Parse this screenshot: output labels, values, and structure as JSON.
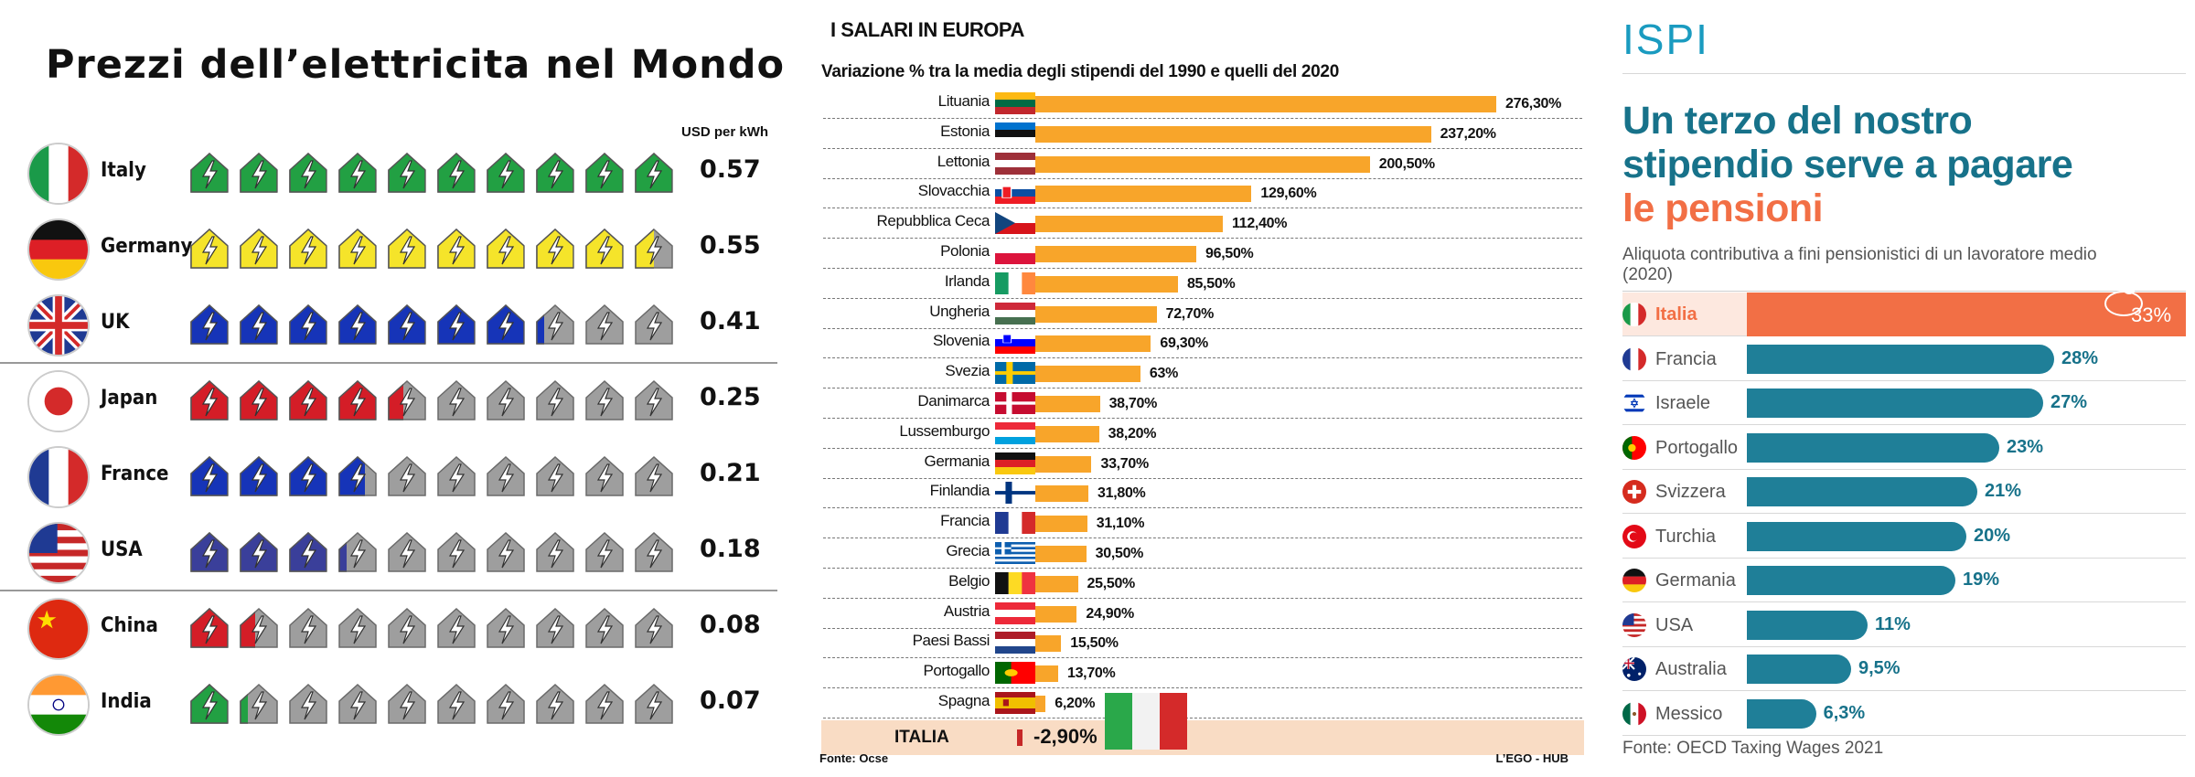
{
  "panel1": {
    "title": "Prezzi dell’elettricita nel Mondo",
    "unit": "USD per kWh",
    "chart_data": {
      "type": "pictograph",
      "title": "Prezzi dell’elettricita nel Mondo",
      "unit": "USD per kWh",
      "icons_total": 10,
      "categories": [
        "Italy",
        "Germany",
        "UK",
        "Japan",
        "France",
        "USA",
        "China",
        "India"
      ],
      "values": [
        0.57,
        0.55,
        0.41,
        0.25,
        0.21,
        0.18,
        0.08,
        0.07
      ],
      "filled_icons": [
        10,
        9.5,
        7.2,
        4.4,
        3.7,
        3.2,
        1.4,
        1.2
      ],
      "colors": [
        "#22a043",
        "#f5e42a",
        "#1634b8",
        "#d41d27",
        "#1634b8",
        "#3a3f9a",
        "#d41d27",
        "#22a043"
      ],
      "empty_color": "#9e9e9e",
      "separators_after": [
        "UK",
        "USA"
      ]
    }
  },
  "panel2": {
    "title": "I SALARI IN EUROPA",
    "subtitle": "Variazione % tra la media degli stipendi del 1990 e quelli del  2020",
    "source": "Fonte: Ocse",
    "credit": "L’EGO - HUB",
    "chart_data": {
      "type": "bar",
      "orientation": "horizontal",
      "title": "I SALARI IN EUROPA",
      "subtitle": "Variazione % tra la media degli stipendi del 1990 e quelli del  2020",
      "categories": [
        "Lituania",
        "Estonia",
        "Lettonia",
        "Slovacchia",
        "Repubblica Ceca",
        "Polonia",
        "Irlanda",
        "Ungheria",
        "Slovenia",
        "Svezia",
        "Danimarca",
        "Lussemburgo",
        "Germania",
        "Finlandia",
        "Francia",
        "Grecia",
        "Belgio",
        "Austria",
        "Paesi Bassi",
        "Portogallo",
        "Spagna"
      ],
      "values": [
        276.3,
        237.2,
        200.5,
        129.6,
        112.4,
        96.5,
        85.5,
        72.7,
        69.3,
        63,
        38.7,
        38.2,
        33.7,
        31.8,
        31.1,
        30.5,
        25.5,
        24.9,
        15.5,
        13.7,
        6.2
      ],
      "value_labels": [
        "276,30%",
        "237,20%",
        "200,50%",
        "129,60%",
        "112,40%",
        "96,50%",
        "85,50%",
        "72,70%",
        "69,30%",
        "63%",
        "38,70%",
        "38,20%",
        "33,70%",
        "31,80%",
        "31,10%",
        "30,50%",
        "25,50%",
        "24,90%",
        "15,50%",
        "13,70%",
        "6,20%"
      ],
      "highlight": {
        "category": "ITALIA",
        "value": -2.9,
        "label": "-2,90%"
      },
      "bar_color": "#f8a52a",
      "highlight_color": "#c62828"
    }
  },
  "panel3": {
    "logo": "ISPI",
    "headline_line1": "Un terzo del nostro",
    "headline_line2": "stipendio serve a pagare",
    "headline_line3": "le pensioni",
    "subtitle": "Aliquota contributiva a fini pensionistici di un lavoratore medio (2020)",
    "source": "Fonte: OECD Taxing Wages 2021",
    "chart_data": {
      "type": "bar",
      "orientation": "horizontal",
      "title": "Un terzo del nostro stipendio serve a pagare le pensioni",
      "subtitle": "Aliquota contributiva a fini pensionistici di un lavoratore medio (2020)",
      "categories": [
        "Italia",
        "Francia",
        "Israele",
        "Portogallo",
        "Svizzera",
        "Turchia",
        "Germania",
        "USA",
        "Australia",
        "Messico"
      ],
      "values": [
        33,
        28,
        27,
        23,
        21,
        20,
        19,
        11,
        9.5,
        6.3
      ],
      "value_labels": [
        "33%",
        "28%",
        "27%",
        "23%",
        "21%",
        "20%",
        "19%",
        "11%",
        "9,5%",
        "6,3%"
      ],
      "bar_color": "#1f7f98",
      "highlight_color": "#f26f45",
      "highlight": "Italia"
    }
  }
}
